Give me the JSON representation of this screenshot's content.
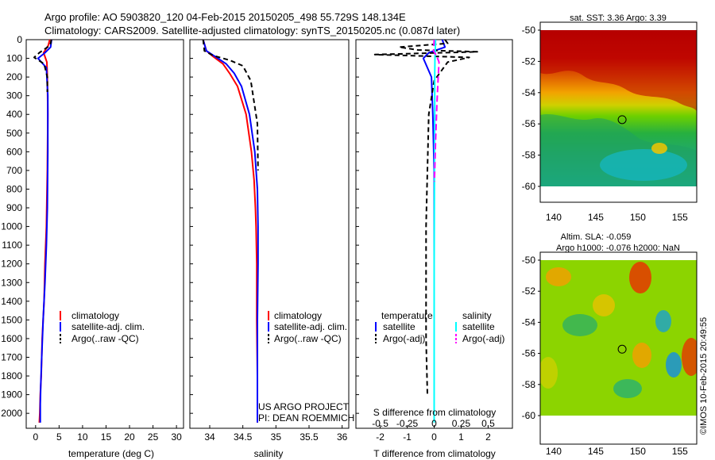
{
  "header": {
    "line1": "Argo profile: AO 5903820_120 04-Feb-2015 20150205_498 55.729S 148.134E",
    "line2": "Climatology: CARS2009. Satellite-adjusted climatology: synTS_20150205.nc (0.087d later)"
  },
  "colors": {
    "climatology": "#ff0000",
    "satellite": "#0000ff",
    "argo": "#000000",
    "sat_salinity": "#00ffff",
    "argo_salinity": "#ff00ff"
  },
  "chart_data": [
    {
      "id": "temperature",
      "type": "line",
      "xlabel": "temperature (deg C)",
      "ylabel": "",
      "xlim": [
        -2,
        31.5
      ],
      "ylim": [
        2080,
        0
      ],
      "xticks": [
        0,
        5,
        10,
        15,
        20,
        25,
        30
      ],
      "yticks": [
        0,
        100,
        200,
        300,
        400,
        500,
        600,
        700,
        800,
        900,
        1000,
        1100,
        1200,
        1300,
        1400,
        1500,
        1600,
        1700,
        1800,
        1900,
        2000
      ],
      "legend": {
        "position": "bottom-right",
        "entries": [
          "climatology",
          "satellite-adj. clim.",
          "Argo(..raw -QC)"
        ]
      },
      "series": [
        {
          "name": "climatology",
          "color": "#ff0000",
          "dash": "",
          "x": [
            3.0,
            2.7,
            1.7,
            2.4,
            2.5,
            2.6,
            2.5,
            2.3,
            2.0,
            1.8,
            1.4,
            1.2,
            1.0,
            0.9,
            0.8
          ],
          "y": [
            0,
            30,
            70,
            120,
            200,
            400,
            700,
            1000,
            1200,
            1400,
            1600,
            1800,
            1900,
            2000,
            2050
          ]
        },
        {
          "name": "satellite-adj. clim.",
          "color": "#0000ff",
          "dash": "",
          "x": [
            3.4,
            3.2,
            2.0,
            0.5,
            2.3,
            2.6,
            2.6,
            2.5,
            2.3,
            2.0,
            1.6,
            1.3,
            1.1,
            1.0,
            1.0
          ],
          "y": [
            0,
            40,
            70,
            100,
            150,
            300,
            600,
            900,
            1100,
            1300,
            1500,
            1700,
            1850,
            1950,
            2050
          ]
        },
        {
          "name": "Argo(..raw -QC)",
          "color": "#000000",
          "dash": "6,4",
          "x": [
            3.36,
            3.1,
            0.8,
            -0.3,
            1.8,
            2.5,
            2.5
          ],
          "y": [
            0,
            30,
            70,
            95,
            130,
            200,
            280
          ]
        }
      ]
    },
    {
      "id": "salinity",
      "type": "line",
      "xlabel": "salinity",
      "ylabel": "",
      "xlim": [
        33.7,
        36.1
      ],
      "ylim": [
        2080,
        0
      ],
      "xticks": [
        34,
        34.5,
        35,
        35.5,
        36
      ],
      "xticklabels": [
        "34",
        "34.5",
        "35",
        "35.5",
        "36"
      ],
      "legend": {
        "position": "bottom-right",
        "entries": [
          "climatology",
          "satellite-adj. clim.",
          "Argo(..raw -QC)"
        ]
      },
      "annotations": [
        "US ARGO PROJECT",
        "PI: DEAN ROEMMICH"
      ],
      "series": [
        {
          "name": "climatology",
          "color": "#ff0000",
          "dash": "",
          "x": [
            33.9,
            33.95,
            34.05,
            34.2,
            34.3,
            34.42,
            34.55,
            34.63,
            34.67,
            34.69,
            34.7,
            34.71,
            34.71,
            34.72,
            34.72,
            34.72
          ],
          "y": [
            0,
            60,
            90,
            130,
            180,
            250,
            400,
            600,
            750,
            900,
            1000,
            1200,
            1500,
            1800,
            2000,
            2050
          ]
        },
        {
          "name": "satellite-adj. clim.",
          "color": "#0000ff",
          "dash": "",
          "x": [
            33.9,
            33.95,
            34.08,
            34.25,
            34.37,
            34.48,
            34.6,
            34.68,
            34.72,
            34.73,
            34.73,
            34.72,
            34.72,
            34.72,
            34.72
          ],
          "y": [
            0,
            60,
            90,
            130,
            180,
            250,
            400,
            600,
            800,
            1000,
            1200,
            1500,
            1800,
            2000,
            2050
          ]
        },
        {
          "name": "Argo(..raw -QC)",
          "color": "#000000",
          "dash": "6,4",
          "x": [
            33.9,
            33.92,
            34.05,
            34.3,
            34.5,
            34.62,
            34.72,
            34.73
          ],
          "y": [
            0,
            60,
            85,
            110,
            140,
            220,
            450,
            700
          ]
        }
      ]
    },
    {
      "id": "difference",
      "type": "line",
      "xlabel": "T difference from climatology",
      "x2label": "S difference from climatology",
      "ylabel": "",
      "xlim": [
        -2.9,
        2.9
      ],
      "ylim": [
        2080,
        0
      ],
      "xticks": [
        -2,
        -1,
        0,
        1,
        2
      ],
      "x2ticks": [
        -0.5,
        -0.25,
        0,
        0.25,
        0.5
      ],
      "x2ticklabels": [
        "-0.5",
        "-0.25",
        "0",
        "0.25",
        "0.5"
      ],
      "legend": {
        "position": "bottom",
        "temperature_title": "temperature",
        "salinity_title": "salinity",
        "entries": [
          "satellite",
          "Argo(-adj)",
          "satellite",
          "Argo(-adj)"
        ]
      },
      "series": [
        {
          "name": "T satellite",
          "color": "#0000ff",
          "dash": "",
          "x": [
            0.3,
            0.4,
            -0.2,
            -0.4,
            -0.1,
            -0.05,
            0.0,
            0.0,
            0.0,
            0.0
          ],
          "y": [
            0,
            40,
            70,
            100,
            200,
            400,
            700,
            1000,
            1500,
            1820
          ]
        },
        {
          "name": "T Argo(-adj)",
          "color": "#000000",
          "dash": "6,4",
          "x": [
            0.4,
            0.5,
            -1.3,
            -0.6,
            1.6,
            -2.2,
            1.3,
            0.5,
            0.3,
            0.0,
            -0.2,
            -0.3,
            -0.3,
            -0.25
          ],
          "y": [
            0,
            20,
            40,
            55,
            65,
            80,
            95,
            120,
            160,
            220,
            400,
            1000,
            1600,
            1900
          ]
        },
        {
          "name": "S satellite",
          "color": "#00ffff",
          "dash": "",
          "x": [
            0.05,
            0.04,
            0.03,
            0.02,
            0.02,
            0.01,
            0.0,
            0.0,
            0.0
          ],
          "y": [
            0,
            60,
            100,
            200,
            400,
            800,
            1200,
            1600,
            2050
          ]
        },
        {
          "name": "S Argo(-adj)",
          "color": "#ff00ff",
          "dash": "8,4",
          "x": [
            0.0,
            -0.02,
            0.1,
            0.18,
            0.15,
            0.1,
            0.05,
            0.02,
            0.01
          ],
          "y": [
            0,
            60,
            90,
            120,
            200,
            350,
            550,
            700,
            760
          ]
        }
      ]
    }
  ],
  "sst_map": {
    "title": "sat. SST: 3.36 Argo: 3.39",
    "xticks": [
      140,
      145,
      150,
      155
    ],
    "yticks": [
      -50,
      -52,
      -54,
      -56,
      -58,
      -60
    ],
    "argo_position": {
      "lon": 148.134,
      "lat": -55.729
    }
  },
  "sla_map": {
    "title_line1": "Altim. SLA: -0.059",
    "title_line2": "Argo h1000: -0.076 h2000: NaN",
    "xticks": [
      140,
      145,
      150,
      155
    ],
    "yticks": [
      -50,
      -52,
      -54,
      -56,
      -58,
      -60
    ],
    "argo_position": {
      "lon": 148.134,
      "lat": -55.729
    }
  },
  "footer": {
    "credit": "©IMOS 10-Feb-2015 20:49:55"
  }
}
